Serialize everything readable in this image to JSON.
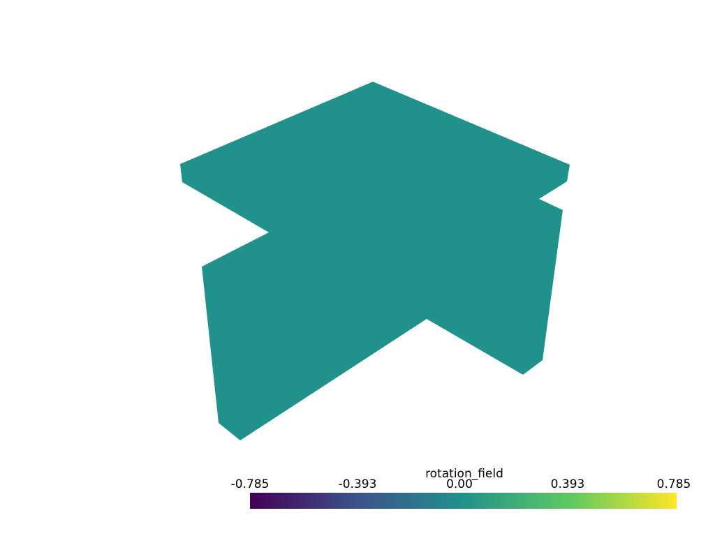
{
  "scalar_bar": {
    "title": "rotation_field",
    "tick_labels": [
      "-0.785",
      "-0.393",
      "0.00",
      "0.393",
      "0.785"
    ],
    "min": -0.785,
    "max": 0.785,
    "colormap": "viridis",
    "colormap_stops": [
      "#440154",
      "#3b528b",
      "#21918c",
      "#5ec962",
      "#fde725"
    ]
  },
  "mesh": {
    "color": "#21918c",
    "scalar_value": 0.0
  }
}
